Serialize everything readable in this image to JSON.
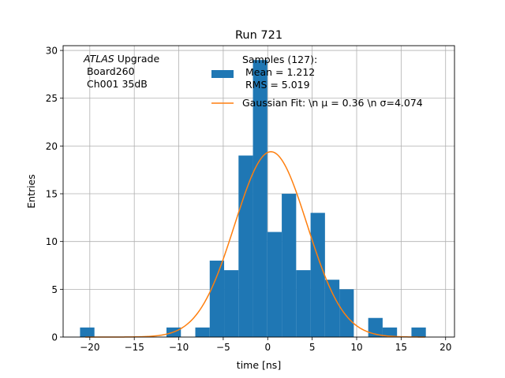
{
  "chart_data": {
    "type": "bar",
    "title": "Run 721",
    "xlabel": "time [ns]",
    "ylabel": "Entries",
    "xlim": [
      -23.0,
      21.0
    ],
    "ylim": [
      0,
      30.5
    ],
    "grid": true,
    "xticks": [
      -20,
      -15,
      -10,
      -5,
      0,
      5,
      10,
      15,
      20
    ],
    "xtick_labels": [
      "−20",
      "−15",
      "−10",
      "−5",
      "0",
      "5",
      "10",
      "15",
      "20"
    ],
    "yticks": [
      0,
      5,
      10,
      15,
      20,
      25,
      30
    ],
    "ytick_labels": [
      "0",
      "5",
      "10",
      "15",
      "20",
      "25",
      "30"
    ],
    "annotation": {
      "italic": "ATLAS",
      "line1_rest": " Upgrade",
      "line2": " Board260",
      "line3": " Ch001 35dB"
    },
    "histogram": {
      "name": "Samples",
      "color": "#1f77b4",
      "bin_edges": [
        -21.1,
        -19.48,
        -17.86,
        -16.24,
        -14.62,
        -13.0,
        -11.38,
        -9.76,
        -8.14,
        -6.52,
        -4.9,
        -3.28,
        -1.66,
        -0.04,
        1.58,
        3.2,
        4.82,
        6.44,
        8.06,
        9.68,
        11.3,
        12.92,
        14.54,
        16.16,
        17.78
      ],
      "counts": [
        1,
        0,
        0,
        0,
        0,
        0,
        1,
        0,
        1,
        8,
        7,
        19,
        29,
        11,
        15,
        7,
        13,
        6,
        5,
        0,
        2,
        1,
        0,
        1
      ]
    },
    "fit": {
      "name": "Gaussian Fit",
      "color": "#ff7f0e",
      "amplitude": 19.4,
      "mu": 0.36,
      "sigma": 4.074,
      "x_range": [
        -20.5,
        17.7
      ]
    },
    "legend": {
      "position": "top-right",
      "hist_label_lines": [
        "Samples (127):",
        " Mean = 1.212",
        " RMS = 5.019"
      ],
      "fit_label": "Gaussian Fit: \\n μ = 0.36 \\n σ=4.074"
    }
  }
}
